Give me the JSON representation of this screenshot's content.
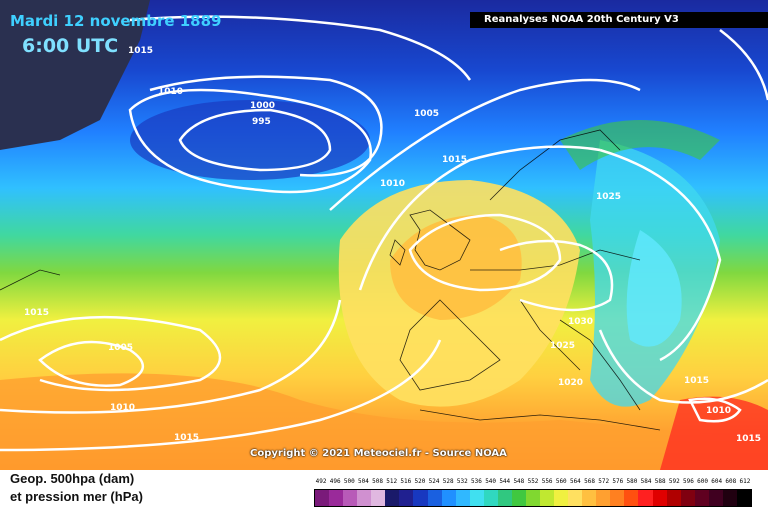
{
  "header": {
    "date": "Mardi 12 novembre 1889",
    "time": "6:00 UTC",
    "source": "Reanalyses NOAA 20th Century V3"
  },
  "footer": {
    "copyright": "Copyright © 2021 Meteociel.fr - Source NOAA",
    "legend_line1": "Geop. 500hpa (dam)",
    "legend_line2": "et pression mer (hPa)"
  },
  "scale": {
    "labels": [
      "492",
      "496",
      "500",
      "504",
      "508",
      "512",
      "516",
      "520",
      "524",
      "528",
      "532",
      "536",
      "540",
      "544",
      "548",
      "552",
      "556",
      "560",
      "564",
      "568",
      "572",
      "576",
      "580",
      "584",
      "588",
      "592",
      "596",
      "600",
      "604",
      "608",
      "612"
    ],
    "colors": [
      "#7a1a7a",
      "#9a2a9a",
      "#b85ab8",
      "#d090d0",
      "#e0b8e0",
      "#1a1a6a",
      "#202090",
      "#1838c0",
      "#1a60e0",
      "#2090ff",
      "#30b8ff",
      "#40e0f0",
      "#30d8c0",
      "#30c880",
      "#40c840",
      "#80d830",
      "#c0e830",
      "#f0f040",
      "#ffe060",
      "#ffc040",
      "#ffa030",
      "#ff8020",
      "#ff5010",
      "#ff2020",
      "#e00000",
      "#b00000",
      "#800010",
      "#600020",
      "#400020",
      "#200010",
      "#000000"
    ]
  },
  "isobars": [
    "1015",
    "1010",
    "1000",
    "995",
    "1005",
    "1015",
    "1010",
    "1025",
    "1030",
    "1025",
    "1020",
    "1015",
    "1010",
    "1015",
    "1005",
    "1010",
    "1015",
    "1015"
  ],
  "colors": {
    "title_date": "#3fd0ff",
    "title_time": "#7fe0ff",
    "isobar": "#ffffff"
  }
}
